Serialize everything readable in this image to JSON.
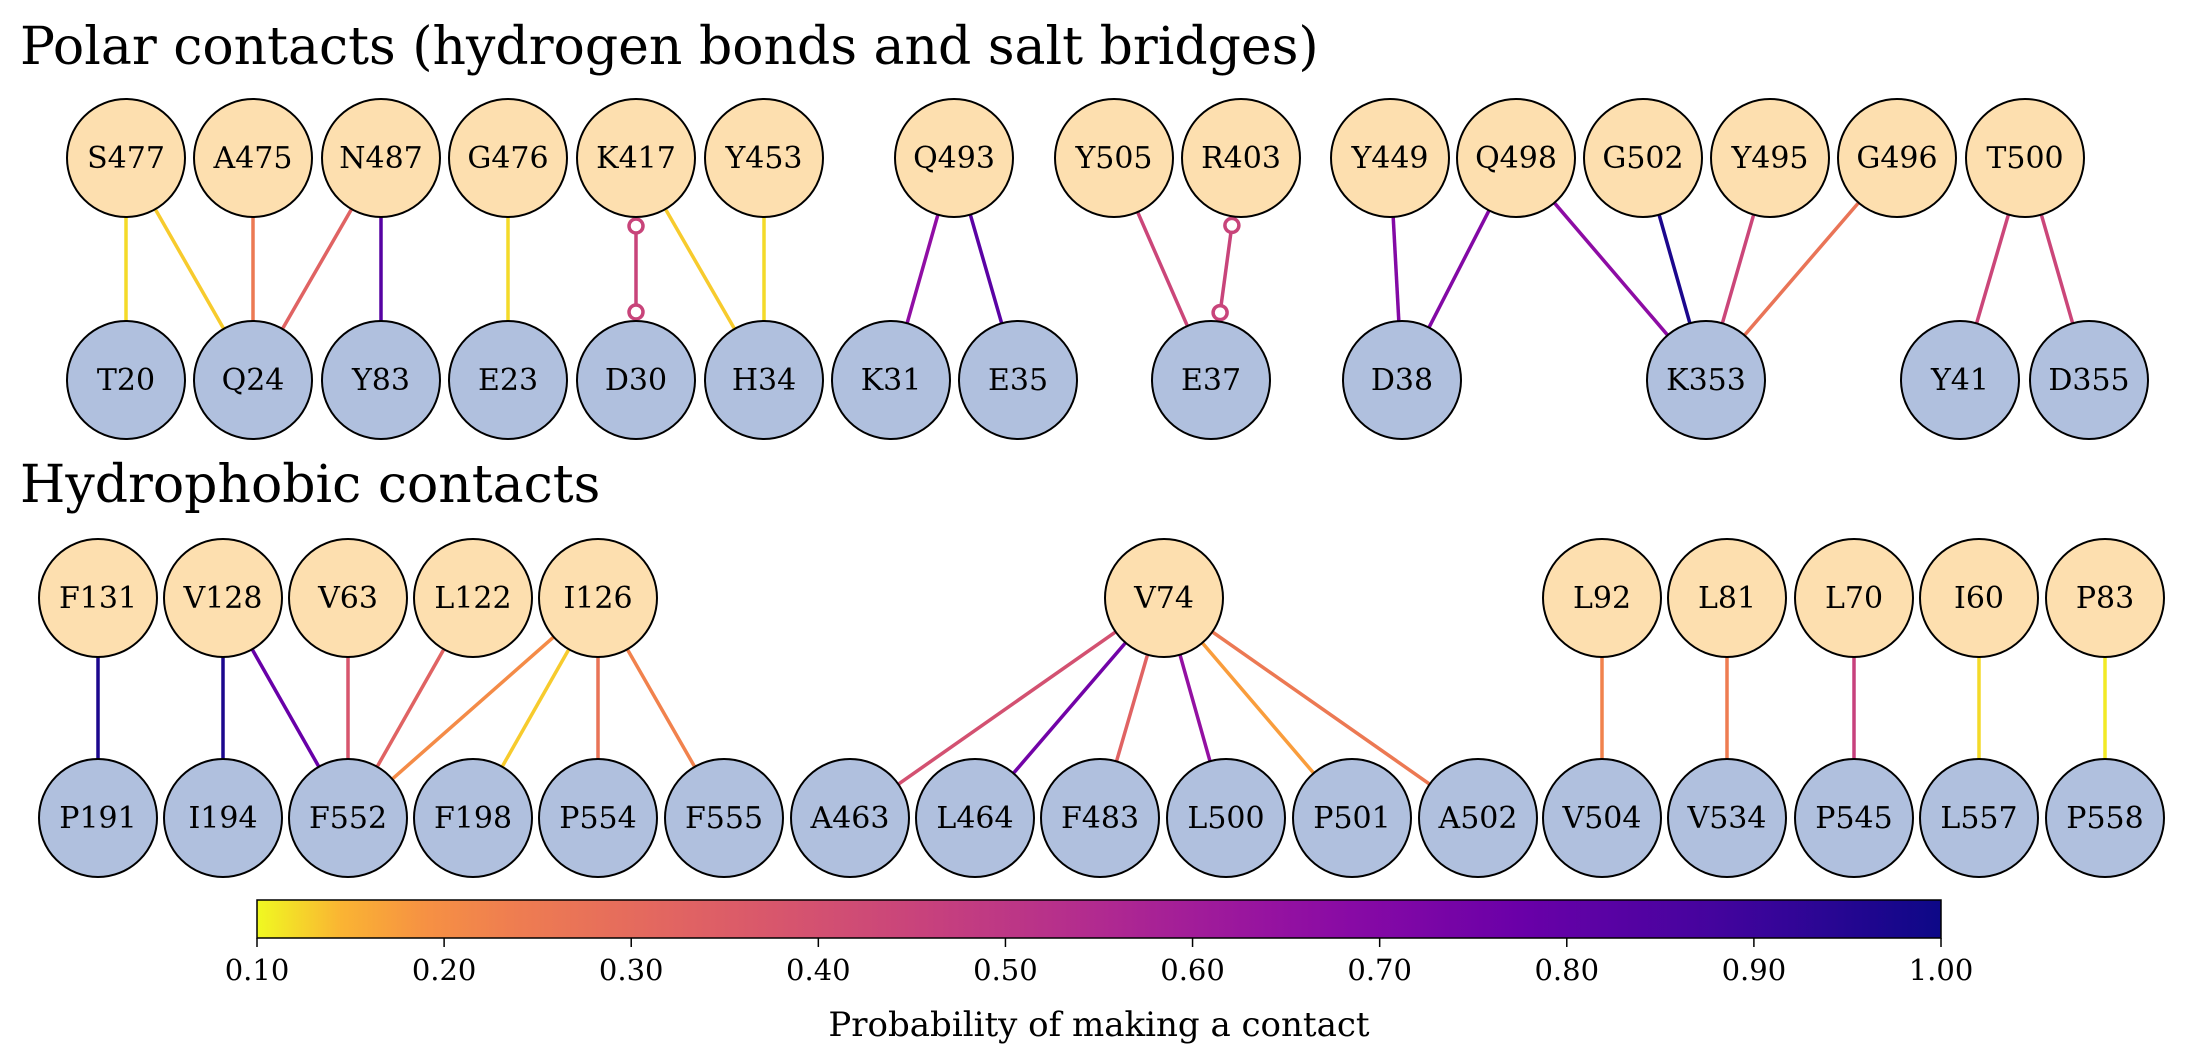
{
  "colors": {
    "top_node": "#FDDFAF",
    "bottom_node": "#B0C0DE",
    "salt_bridge": "#C8447A"
  },
  "sections": [
    {
      "title": "Polar contacts (hydrogen bonds and salt bridges)",
      "top": [
        "S477",
        "A475",
        "N487",
        "G476",
        "K417",
        "Y453",
        "Q493",
        "Y505",
        "R403",
        "Y449",
        "Q498",
        "G502",
        "Y495",
        "G496",
        "T500"
      ],
      "bottom": [
        "T20",
        "Q24",
        "Y83",
        "E23",
        "D30",
        "H34",
        "K31",
        "E35",
        "E37",
        "D38",
        "K353",
        "Y41",
        "D355"
      ],
      "contacts": [
        {
          "from": "S477",
          "to": "T20",
          "p": 0.12
        },
        {
          "from": "S477",
          "to": "Q24",
          "p": 0.13
        },
        {
          "from": "A475",
          "to": "Q24",
          "p": 0.25
        },
        {
          "from": "N487",
          "to": "Q24",
          "p": 0.33
        },
        {
          "from": "N487",
          "to": "Y83",
          "p": 0.83
        },
        {
          "from": "G476",
          "to": "E23",
          "p": 0.12
        },
        {
          "from": "K417",
          "to": "D30",
          "p": 0.5,
          "salt_bridge": true
        },
        {
          "from": "K417",
          "to": "H34",
          "p": 0.13
        },
        {
          "from": "Y453",
          "to": "H34",
          "p": 0.12
        },
        {
          "from": "Q493",
          "to": "K31",
          "p": 0.66
        },
        {
          "from": "Q493",
          "to": "E35",
          "p": 0.82
        },
        {
          "from": "Y505",
          "to": "E37",
          "p": 0.44
        },
        {
          "from": "R403",
          "to": "E37",
          "p": 0.5,
          "salt_bridge": true
        },
        {
          "from": "Y449",
          "to": "D38",
          "p": 0.7
        },
        {
          "from": "Q498",
          "to": "D38",
          "p": 0.7
        },
        {
          "from": "Q498",
          "to": "K353",
          "p": 0.67
        },
        {
          "from": "G502",
          "to": "K353",
          "p": 0.97
        },
        {
          "from": "Y495",
          "to": "K353",
          "p": 0.44
        },
        {
          "from": "G496",
          "to": "K353",
          "p": 0.27
        },
        {
          "from": "T500",
          "to": "Y41",
          "p": 0.44
        },
        {
          "from": "T500",
          "to": "D355",
          "p": 0.44
        }
      ]
    },
    {
      "title": "Hydrophobic contacts",
      "top": [
        "F131",
        "V128",
        "V63",
        "L122",
        "I126",
        "V74",
        "L92",
        "L81",
        "L70",
        "I60",
        "P83"
      ],
      "bottom": [
        "P191",
        "I194",
        "F552",
        "F198",
        "P554",
        "F555",
        "A463",
        "L464",
        "F483",
        "L500",
        "P501",
        "A502",
        "V504",
        "V534",
        "P545",
        "L557",
        "P558"
      ],
      "contacts": [
        {
          "from": "F131",
          "to": "P191",
          "p": 0.97
        },
        {
          "from": "V128",
          "to": "I194",
          "p": 0.97
        },
        {
          "from": "V128",
          "to": "F552",
          "p": 0.78
        },
        {
          "from": "V63",
          "to": "F552",
          "p": 0.38
        },
        {
          "from": "L122",
          "to": "F552",
          "p": 0.33
        },
        {
          "from": "I126",
          "to": "F552",
          "p": 0.2
        },
        {
          "from": "I126",
          "to": "F198",
          "p": 0.13
        },
        {
          "from": "I126",
          "to": "P554",
          "p": 0.27
        },
        {
          "from": "I126",
          "to": "F555",
          "p": 0.22
        },
        {
          "from": "V74",
          "to": "A463",
          "p": 0.4
        },
        {
          "from": "V74",
          "to": "L464",
          "p": 0.75
        },
        {
          "from": "V74",
          "to": "F483",
          "p": 0.33
        },
        {
          "from": "V74",
          "to": "L500",
          "p": 0.65
        },
        {
          "from": "V74",
          "to": "P501",
          "p": 0.17
        },
        {
          "from": "V74",
          "to": "A502",
          "p": 0.25
        },
        {
          "from": "L92",
          "to": "V504",
          "p": 0.22
        },
        {
          "from": "L81",
          "to": "V534",
          "p": 0.24
        },
        {
          "from": "L70",
          "to": "P545",
          "p": 0.46
        },
        {
          "from": "I60",
          "to": "L557",
          "p": 0.12
        },
        {
          "from": "P83",
          "to": "P558",
          "p": 0.11
        }
      ]
    }
  ],
  "colorbar": {
    "label": "Probability of making a contact",
    "min": 0.1,
    "max": 1.0,
    "ticks": [
      "0.10",
      "0.20",
      "0.30",
      "0.40",
      "0.50",
      "0.60",
      "0.70",
      "0.80",
      "0.90",
      "1.00"
    ],
    "colormap": "plasma_r"
  }
}
